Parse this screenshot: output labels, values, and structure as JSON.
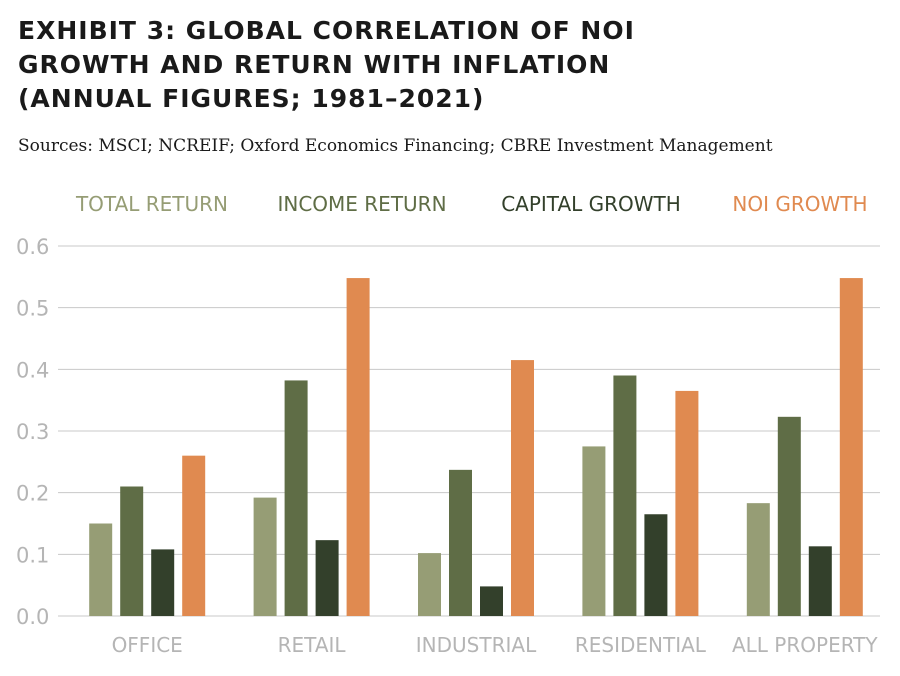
{
  "title_lines": [
    "EXHIBIT 3: GLOBAL CORRELATION OF NOI",
    "GROWTH AND RETURN WITH INFLATION",
    "(ANNUAL FIGURES; 1981–2021)"
  ],
  "source": "Sources: MSCI; NCREIF; Oxford Economics Financing; CBRE Investment Management",
  "colors": {
    "total_return": "#969d75",
    "income_return": "#5f6d46",
    "capital_growth": "#33402b",
    "noi_growth": "#e08a50",
    "grid": "#c8c8c8",
    "axis_text": "#b5b5b5"
  },
  "chart_data": {
    "type": "bar",
    "categories": [
      "OFFICE",
      "RETAIL",
      "INDUSTRIAL",
      "RESIDENTIAL",
      "ALL PROPERTY"
    ],
    "series": [
      {
        "name": "TOTAL RETURN",
        "key": "total_return",
        "values": [
          0.15,
          0.192,
          0.102,
          0.275,
          0.183
        ]
      },
      {
        "name": "INCOME RETURN",
        "key": "income_return",
        "values": [
          0.21,
          0.382,
          0.237,
          0.39,
          0.323
        ]
      },
      {
        "name": "CAPITAL GROWTH",
        "key": "capital_growth",
        "values": [
          0.108,
          0.123,
          0.048,
          0.165,
          0.113
        ]
      },
      {
        "name": "NOI GROWTH",
        "key": "noi_growth",
        "values": [
          0.26,
          0.548,
          0.415,
          0.365,
          0.548
        ]
      }
    ],
    "yticks": [
      "0.0",
      "0.1",
      "0.2",
      "0.3",
      "0.4",
      "0.5",
      "0.6"
    ],
    "ylim": [
      0,
      0.6
    ],
    "grid": true,
    "legend_position": "top"
  }
}
